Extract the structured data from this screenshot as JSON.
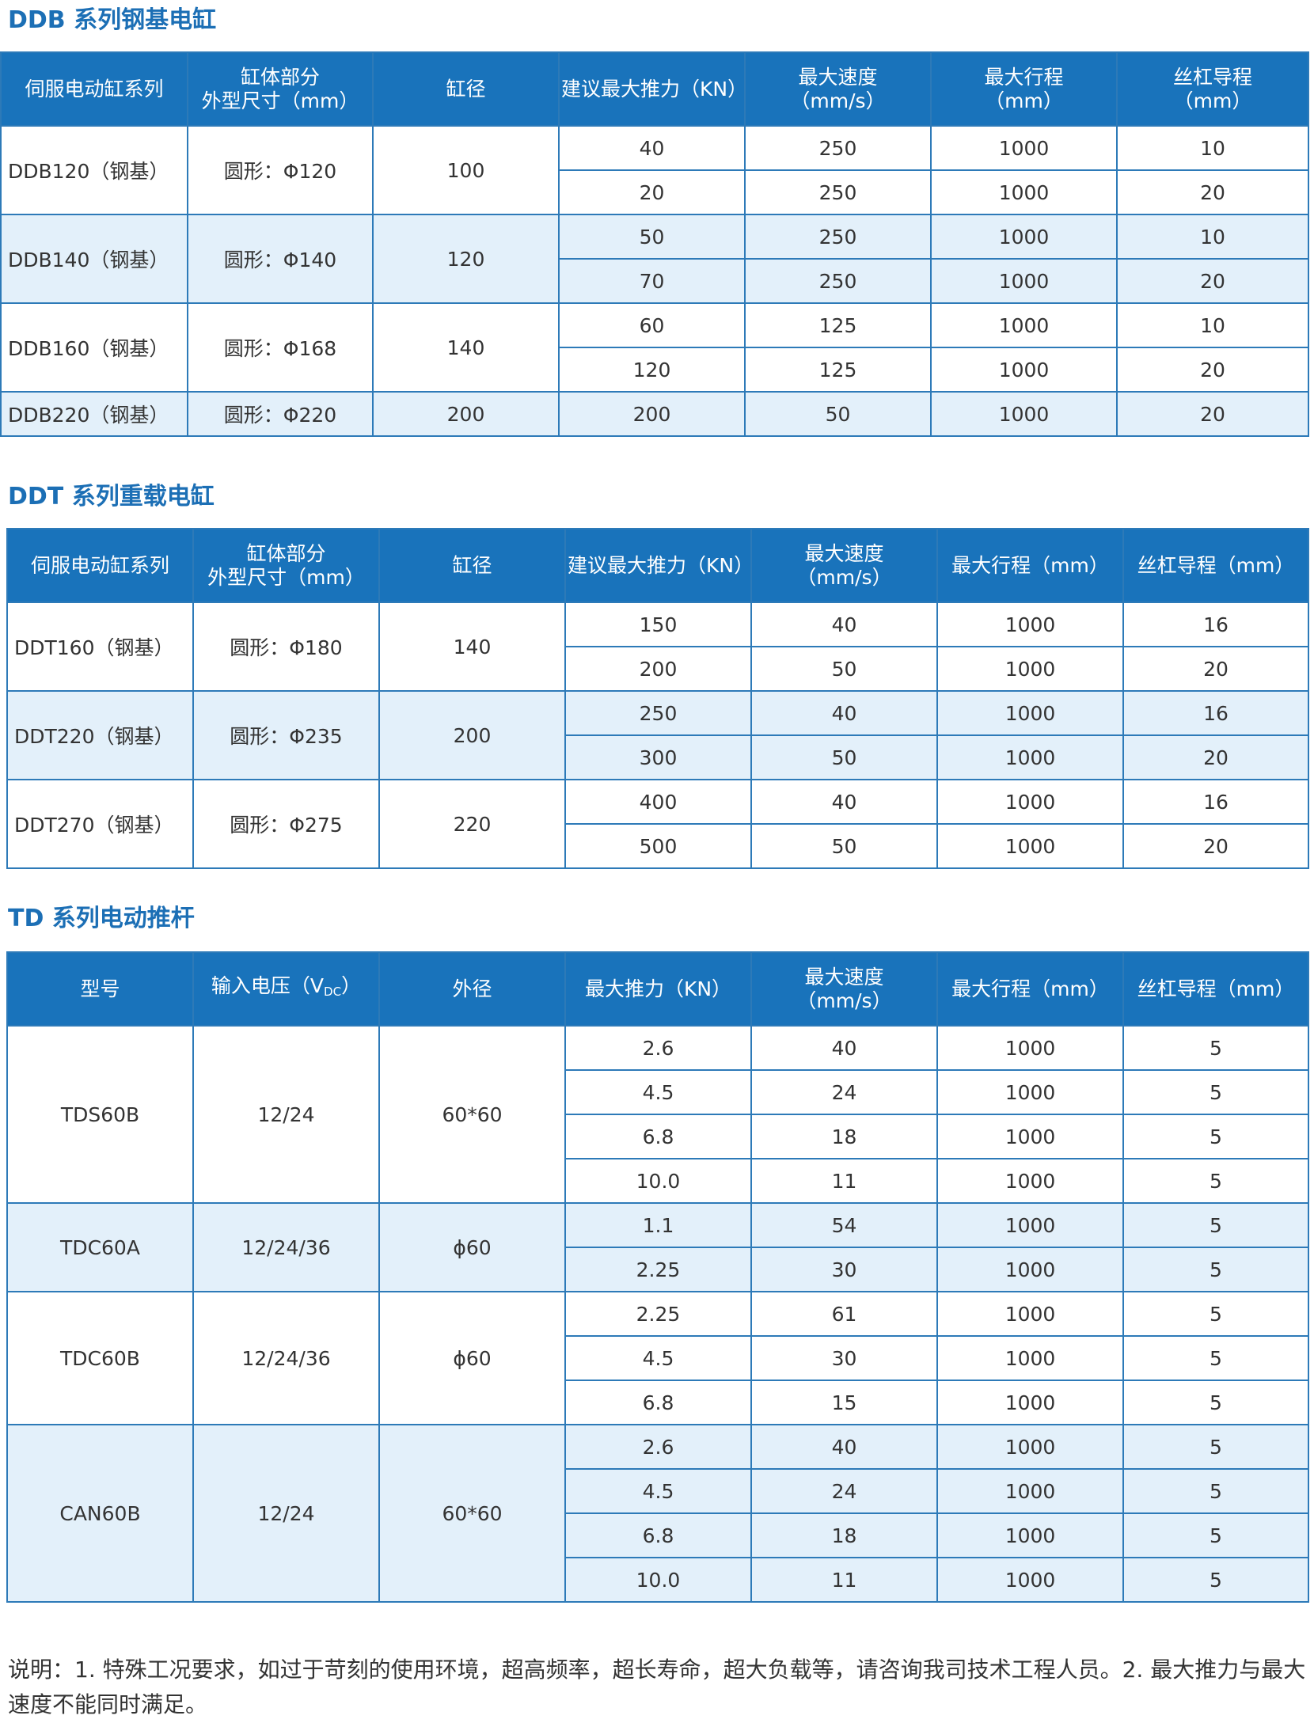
{
  "ddb": {
    "title": "DDB 系列钢基电缸",
    "headers": [
      "伺服电动缸系列",
      "缸体部分",
      "外型尺寸（mm）",
      "缸径",
      "建议最大推力（KN）",
      "最大速度",
      "（mm/s）",
      "最大行程",
      "（mm）",
      "丝杠导程",
      "（mm）"
    ],
    "groups": [
      {
        "model": "DDB120（钢基）",
        "size": "圆形：Φ120",
        "bore": "100",
        "rows": [
          {
            "thrust": "40",
            "speed": "250",
            "stroke": "1000",
            "lead": "10"
          },
          {
            "thrust": "20",
            "speed": "250",
            "stroke": "1000",
            "lead": "20"
          }
        ]
      },
      {
        "model": "DDB140（钢基）",
        "size": "圆形：Φ140",
        "bore": "120",
        "rows": [
          {
            "thrust": "50",
            "speed": "250",
            "stroke": "1000",
            "lead": "10"
          },
          {
            "thrust": "70",
            "speed": "250",
            "stroke": "1000",
            "lead": "20"
          }
        ]
      },
      {
        "model": "DDB160（钢基）",
        "size": "圆形：Φ168",
        "bore": "140",
        "rows": [
          {
            "thrust": "60",
            "speed": "125",
            "stroke": "1000",
            "lead": "10"
          },
          {
            "thrust": "120",
            "speed": "125",
            "stroke": "1000",
            "lead": "20"
          }
        ]
      },
      {
        "model": "DDB220（钢基）",
        "size": "圆形：Φ220",
        "bore": "200",
        "rows": [
          {
            "thrust": "200",
            "speed": "50",
            "stroke": "1000",
            "lead": "20"
          }
        ]
      }
    ]
  },
  "ddt": {
    "title": "DDT 系列重载电缸",
    "headers": [
      "伺服电动缸系列",
      "缸体部分",
      "外型尺寸（mm）",
      "缸径",
      "建议最大推力（KN）",
      "最大速度",
      "（mm/s）",
      "最大行程（mm）",
      "丝杠导程（mm）"
    ],
    "groups": [
      {
        "model": "DDT160（钢基）",
        "size": "圆形：Φ180",
        "bore": "140",
        "rows": [
          {
            "thrust": "150",
            "speed": "40",
            "stroke": "1000",
            "lead": "16"
          },
          {
            "thrust": "200",
            "speed": "50",
            "stroke": "1000",
            "lead": "20"
          }
        ]
      },
      {
        "model": "DDT220（钢基）",
        "size": "圆形：Φ235",
        "bore": "200",
        "rows": [
          {
            "thrust": "250",
            "speed": "40",
            "stroke": "1000",
            "lead": "16"
          },
          {
            "thrust": "300",
            "speed": "50",
            "stroke": "1000",
            "lead": "20"
          }
        ]
      },
      {
        "model": "DDT270（钢基）",
        "size": "圆形：Φ275",
        "bore": "220",
        "rows": [
          {
            "thrust": "400",
            "speed": "40",
            "stroke": "1000",
            "lead": "16"
          },
          {
            "thrust": "500",
            "speed": "50",
            "stroke": "1000",
            "lead": "20"
          }
        ]
      }
    ]
  },
  "td": {
    "title": "TD 系列电动推杆",
    "headers": [
      "型号",
      "输入电压（V",
      "DC",
      "）",
      "外径",
      "最大推力（KN）",
      "最大速度",
      "（mm/s）",
      "最大行程（mm）",
      "丝杠导程（mm）"
    ],
    "groups": [
      {
        "model": "TDS60B",
        "voltage": "12/24",
        "diameter": "60*60",
        "rows": [
          {
            "thrust": "2.6",
            "speed": "40",
            "stroke": "1000",
            "lead": "5"
          },
          {
            "thrust": "4.5",
            "speed": "24",
            "stroke": "1000",
            "lead": "5"
          },
          {
            "thrust": "6.8",
            "speed": "18",
            "stroke": "1000",
            "lead": "5"
          },
          {
            "thrust": "10.0",
            "speed": "11",
            "stroke": "1000",
            "lead": "5"
          }
        ]
      },
      {
        "model": "TDC60A",
        "voltage": "12/24/36",
        "diameter": "ϕ60",
        "rows": [
          {
            "thrust": "1.1",
            "speed": "54",
            "stroke": "1000",
            "lead": "5"
          },
          {
            "thrust": "2.25",
            "speed": "30",
            "stroke": "1000",
            "lead": "5"
          }
        ]
      },
      {
        "model": "TDC60B",
        "voltage": "12/24/36",
        "diameter": "ϕ60",
        "rows": [
          {
            "thrust": "2.25",
            "speed": "61",
            "stroke": "1000",
            "lead": "5"
          },
          {
            "thrust": "4.5",
            "speed": "30",
            "stroke": "1000",
            "lead": "5"
          },
          {
            "thrust": "6.8",
            "speed": "15",
            "stroke": "1000",
            "lead": "5"
          }
        ]
      },
      {
        "model": "CAN60B",
        "voltage": "12/24",
        "diameter": "60*60",
        "rows": [
          {
            "thrust": "2.6",
            "speed": "40",
            "stroke": "1000",
            "lead": "5"
          },
          {
            "thrust": "4.5",
            "speed": "24",
            "stroke": "1000",
            "lead": "5"
          },
          {
            "thrust": "6.8",
            "speed": "18",
            "stroke": "1000",
            "lead": "5"
          },
          {
            "thrust": "10.0",
            "speed": "11",
            "stroke": "1000",
            "lead": "5"
          }
        ]
      }
    ]
  },
  "note": "说明：1. 特殊工况要求，如过于苛刻的使用环境，超高频率，超长寿命，超大负载等，请咨询我司技术工程人员。2. 最大推力与最大速度不能同时满足。",
  "colors": {
    "accent": "#1c6fb5",
    "header_bg": "#1973bb",
    "border": "#2d7ab8",
    "stripe": "#e3f0fa"
  }
}
